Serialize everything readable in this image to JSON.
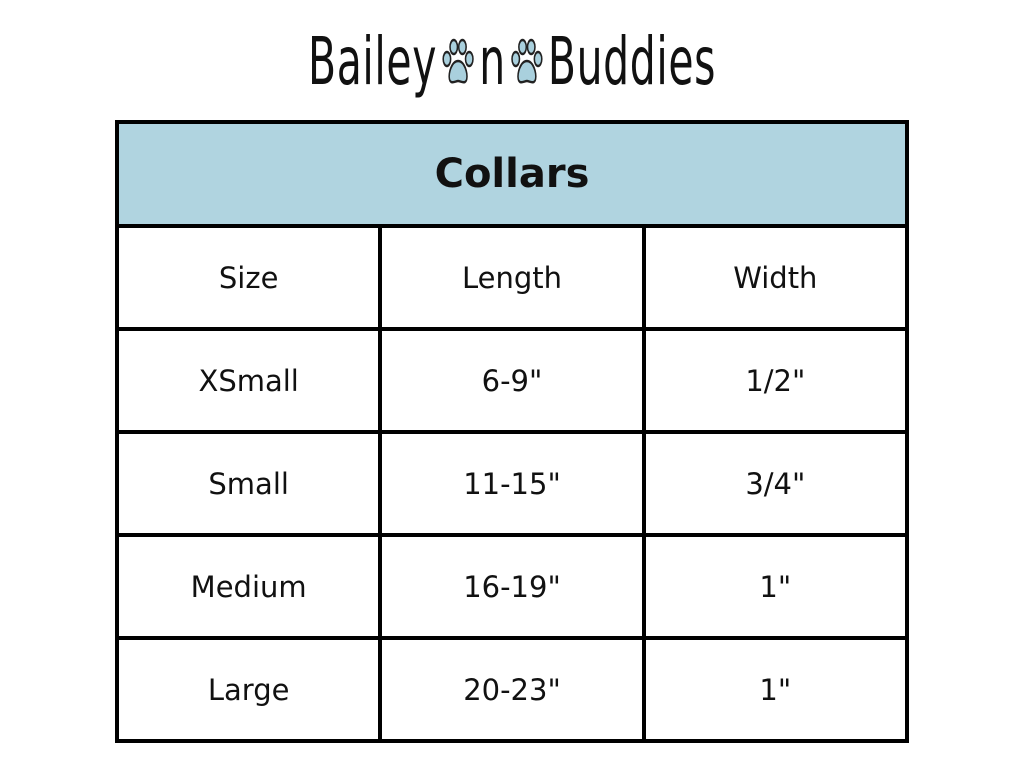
{
  "logo": {
    "text_left": "Bailey",
    "text_mid": "n",
    "text_right": "Buddies",
    "paw_color": "#a9d0dd"
  },
  "table": {
    "title": "Collars",
    "header_color": "#b0d4e0",
    "columns": [
      "Size",
      "Length",
      "Width"
    ],
    "rows": [
      [
        "XSmall",
        "6-9\"",
        "1/2\""
      ],
      [
        "Small",
        "11-15\"",
        "3/4\""
      ],
      [
        "Medium",
        "16-19\"",
        "1\""
      ],
      [
        "Large",
        "20-23\"",
        "1\""
      ]
    ]
  }
}
